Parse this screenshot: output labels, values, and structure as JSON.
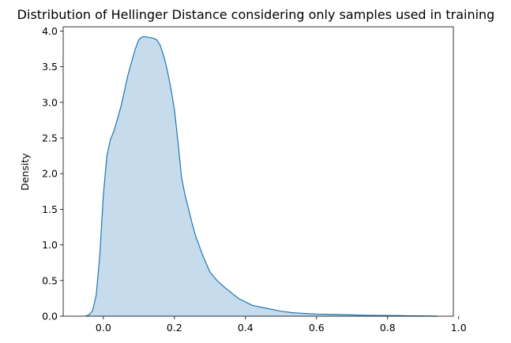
{
  "chart_data": {
    "type": "area",
    "title": "Distribution of Hellinger Distance considering only samples used in training",
    "xlabel": "",
    "ylabel": "Density",
    "xlim": [
      -0.113,
      0.985
    ],
    "ylim": [
      0,
      4.06
    ],
    "xticks": [
      "0.0",
      "0.2",
      "0.4",
      "0.6",
      "0.8",
      "1.0"
    ],
    "yticks": [
      "0.0",
      "0.5",
      "1.0",
      "1.5",
      "2.0",
      "2.5",
      "3.0",
      "3.5",
      "4.0"
    ],
    "grid": false,
    "legend": "none",
    "series": [
      {
        "line_color": "#1f77b4",
        "fill_color": "#c6dcec",
        "x": [
          -0.05,
          -0.04,
          -0.03,
          -0.02,
          -0.01,
          0.0,
          0.01,
          0.02,
          0.03,
          0.05,
          0.07,
          0.09,
          0.1,
          0.11,
          0.12,
          0.13,
          0.14,
          0.15,
          0.16,
          0.17,
          0.18,
          0.19,
          0.2,
          0.21,
          0.22,
          0.23,
          0.24,
          0.25,
          0.26,
          0.28,
          0.3,
          0.32,
          0.34,
          0.36,
          0.38,
          0.4,
          0.42,
          0.45,
          0.48,
          0.5,
          0.53,
          0.56,
          0.6,
          0.65,
          0.7,
          0.75,
          0.8,
          0.85,
          0.9,
          0.94
        ],
        "y": [
          0.0,
          0.02,
          0.08,
          0.3,
          0.85,
          1.7,
          2.25,
          2.48,
          2.6,
          2.95,
          3.4,
          3.75,
          3.88,
          3.92,
          3.92,
          3.91,
          3.9,
          3.88,
          3.8,
          3.65,
          3.45,
          3.2,
          2.9,
          2.45,
          1.95,
          1.7,
          1.5,
          1.3,
          1.12,
          0.85,
          0.62,
          0.5,
          0.41,
          0.33,
          0.25,
          0.2,
          0.15,
          0.12,
          0.09,
          0.07,
          0.05,
          0.04,
          0.03,
          0.025,
          0.018,
          0.012,
          0.01,
          0.006,
          0.003,
          0.0
        ]
      }
    ]
  }
}
